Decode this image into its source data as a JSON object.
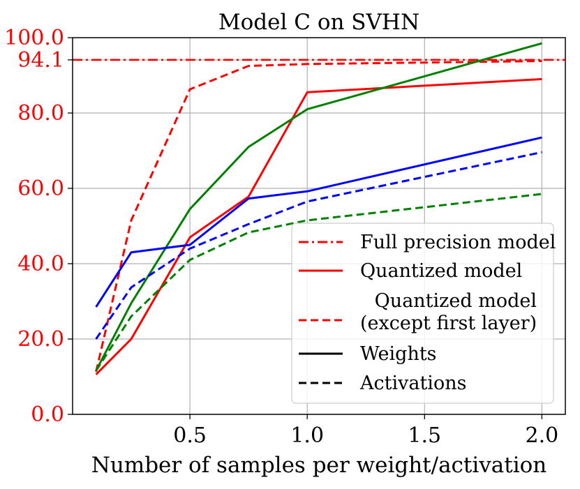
{
  "chart_data": {
    "type": "line",
    "title": "Model C on SVHN",
    "xlabel": "Number of samples per weight/activation",
    "ylabel": "",
    "xlim": [
      0.0,
      2.1
    ],
    "ylim": [
      0.0,
      100.0
    ],
    "grid": true,
    "x_ticks": [
      0.5,
      1.0,
      1.5,
      2.0
    ],
    "x_tick_labels": [
      "0.5",
      "1.0",
      "1.5",
      "2.0"
    ],
    "y_ticks": [
      0.0,
      20.0,
      40.0,
      60.0,
      80.0,
      94.1,
      100.0
    ],
    "y_tick_labels": [
      "0.0",
      "20.0",
      "40.0",
      "60.0",
      "80.0",
      "94.1",
      "100.0"
    ],
    "y_tick_color": "#ff0000",
    "reference_line": {
      "name": "Full precision model",
      "value": 94.1,
      "color": "#ff0000",
      "style": "dashdot"
    },
    "series": [
      {
        "name": "Quantized model - Weights",
        "color": "#ff0000",
        "style": "solid",
        "x": [
          0.1,
          0.25,
          0.5,
          0.75,
          1.0,
          2.0
        ],
        "values": [
          10.6,
          20.0,
          47.0,
          57.8,
          85.5,
          89.0
        ]
      },
      {
        "name": "Quantized model (except first layer) - Activations",
        "color": "#ff0000",
        "style": "dashed",
        "x": [
          0.1,
          0.25,
          0.5,
          0.75,
          1.0,
          2.0
        ],
        "values": [
          11.3,
          51.5,
          86.3,
          92.5,
          93.0,
          93.8
        ]
      },
      {
        "name": "Green - Weights",
        "color": "#008000",
        "style": "solid",
        "x": [
          0.1,
          0.25,
          0.5,
          0.75,
          1.0,
          2.0
        ],
        "values": [
          11.6,
          29.5,
          54.5,
          71.0,
          81.0,
          98.5
        ]
      },
      {
        "name": "Green - Activations",
        "color": "#008000",
        "style": "dashed",
        "x": [
          0.1,
          0.25,
          0.5,
          0.75,
          1.0,
          2.0
        ],
        "values": [
          11.6,
          26.0,
          41.0,
          48.3,
          51.5,
          58.5
        ]
      },
      {
        "name": "Blue - Weights",
        "color": "#0000ff",
        "style": "solid",
        "x": [
          0.1,
          0.25,
          0.5,
          0.75,
          1.0,
          2.0
        ],
        "values": [
          28.5,
          43.0,
          45.0,
          57.3,
          59.2,
          73.5
        ]
      },
      {
        "name": "Blue - Activations",
        "color": "#0000ff",
        "style": "dashed",
        "x": [
          0.1,
          0.25,
          0.5,
          0.75,
          1.0,
          2.0
        ],
        "values": [
          20.0,
          33.7,
          44.0,
          50.5,
          56.5,
          69.6
        ]
      }
    ],
    "legend": {
      "placement": "lower-right",
      "entries": [
        {
          "label": "Full precision model",
          "color": "#ff0000",
          "style": "dashdot"
        },
        {
          "label": "Quantized model",
          "color": "#ff0000",
          "style": "solid"
        },
        {
          "label_line1": "Quantized model",
          "label_line2": "(except first layer)",
          "color": "#ff0000",
          "style": "dashed"
        },
        {
          "label": "Weights",
          "color": "#000000",
          "style": "solid"
        },
        {
          "label": "Activations",
          "color": "#000000",
          "style": "dashed"
        }
      ]
    }
  }
}
